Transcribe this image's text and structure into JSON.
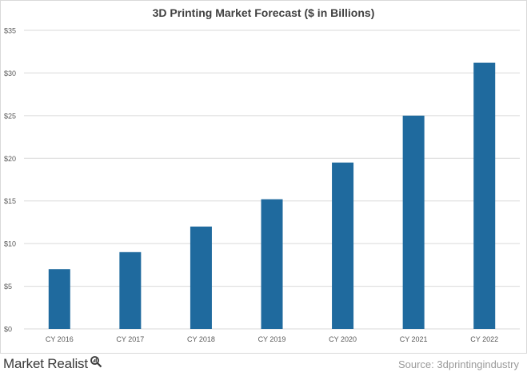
{
  "chart_data": {
    "type": "bar",
    "title": "3D Printing Market Forecast ($ in Billions)",
    "categories": [
      "CY 2016",
      "CY 2017",
      "CY 2018",
      "CY 2019",
      "CY 2020",
      "CY 2021",
      "CY 2022"
    ],
    "values": [
      7.0,
      9.0,
      12.0,
      15.2,
      19.5,
      25.0,
      31.2
    ],
    "ylim": [
      0,
      35
    ],
    "yticks": [
      0,
      5,
      10,
      15,
      20,
      25,
      30,
      35
    ],
    "ytick_labels": [
      "$0",
      "$5",
      "$10",
      "$15",
      "$20",
      "$25",
      "$30",
      "$35"
    ],
    "grid": true,
    "bar_color": "#1f6a9e",
    "grid_color": "#d9d9d9"
  },
  "footer": {
    "brand": "Market Realist",
    "brand_icon": "magnifier-icon",
    "source": "Source:  3dprintingindustry"
  }
}
